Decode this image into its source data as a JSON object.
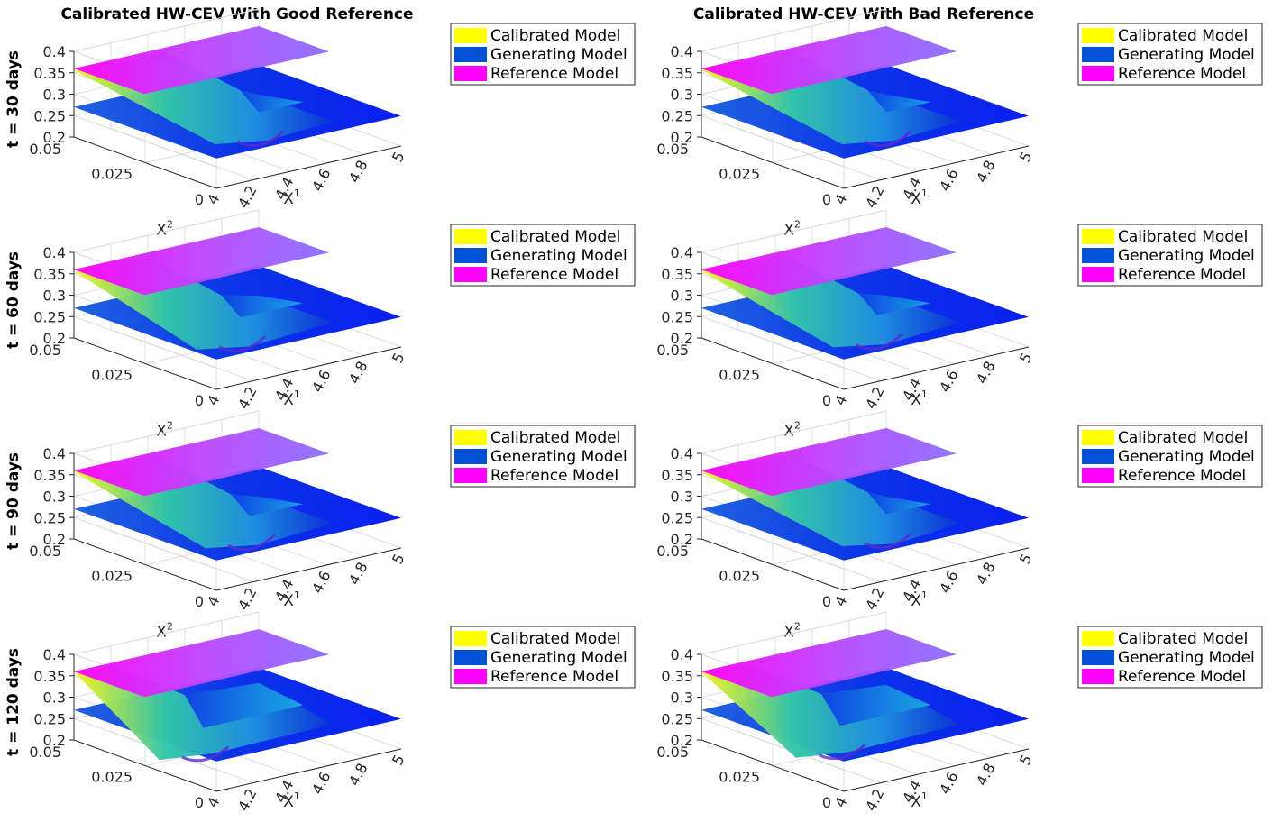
{
  "chart_data": {
    "type": "surface3d",
    "columns": [
      {
        "title": "Calibrated HW-CEV With Good Reference"
      },
      {
        "title": "Calibrated HW-CEV With Bad Reference"
      }
    ],
    "rows": [
      {
        "label": "t = 30 days"
      },
      {
        "label": "t = 60 days"
      },
      {
        "label": "t = 90 days"
      },
      {
        "label": "t = 120 days"
      }
    ],
    "axes": {
      "z": {
        "ticks": [
          "0.4",
          "0.35",
          "0.3",
          "0.25",
          "0.2"
        ],
        "range": [
          0.2,
          0.4
        ]
      },
      "x2": {
        "label": "X",
        "sup": "2",
        "ticks": [
          "0.05",
          "0.025",
          "0"
        ],
        "range": [
          0,
          0.05
        ]
      },
      "x1": {
        "label": "X",
        "sup": "1",
        "ticks": [
          "4",
          "4.2",
          "4.4",
          "4.6",
          "4.8",
          "5"
        ],
        "range": [
          4,
          5
        ]
      }
    },
    "legend": [
      "Calibrated Model",
      "Generating Model",
      "Reference Model"
    ],
    "series": [
      {
        "name": "Calibrated Model",
        "color": "#ffff00",
        "z_range": [
          0.2,
          0.36
        ]
      },
      {
        "name": "Generating Model",
        "color": "#0050d8",
        "z_level": 0.27
      },
      {
        "name": "Reference Model",
        "color": "#ff00ff",
        "z_level": 0.36
      }
    ],
    "dips": [
      [
        [
          0.55,
          0.0,
          0.5
        ],
        [
          0.45,
          0.0,
          0.6
        ],
        [
          0.5,
          0.0,
          0.55
        ],
        [
          0.25,
          0.85,
          0.2
        ]
      ],
      [
        [
          0.55,
          0.0,
          0.5
        ],
        [
          0.5,
          0.0,
          0.6
        ],
        [
          0.55,
          0.0,
          0.65
        ],
        [
          0.3,
          0.75,
          0.25
        ]
      ]
    ]
  }
}
